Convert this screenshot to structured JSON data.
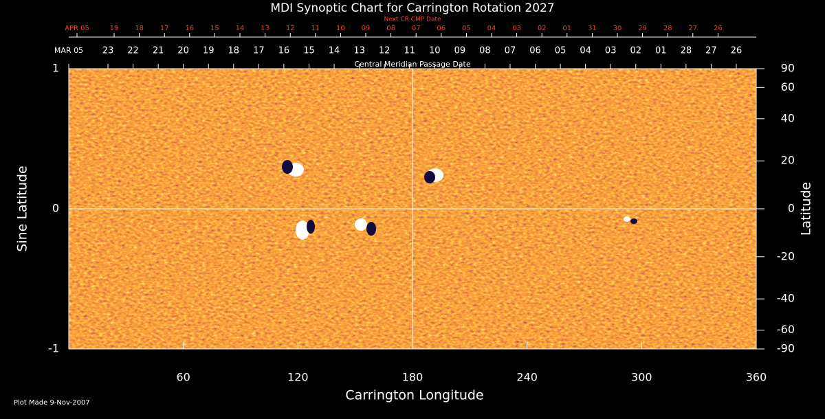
{
  "chart_data": {
    "type": "synoptic-map",
    "title": "MDI Synoptic Chart for Carrington Rotation 2027",
    "next_axis": {
      "title": "Next CR CMP Date",
      "color": "#ff3c1e",
      "labels": [
        "APR 05",
        "19",
        "18",
        "17",
        "16",
        "15",
        "14",
        "13",
        "12",
        "11",
        "10",
        "09",
        "08",
        "07",
        "06",
        "05",
        "04",
        "03",
        "02",
        "01",
        "31",
        "30",
        "29",
        "28",
        "27",
        "26"
      ]
    },
    "cmp_axis": {
      "title": "Central Meridian Passage Date",
      "labels": [
        "MAR 05",
        "23",
        "22",
        "21",
        "20",
        "19",
        "18",
        "17",
        "16",
        "15",
        "14",
        "13",
        "12",
        "11",
        "10",
        "09",
        "08",
        "07",
        "06",
        "05",
        "04",
        "03",
        "02",
        "01",
        "28",
        "27",
        "26"
      ]
    },
    "xlabel": "Carrington Longitude",
    "ylabel": "Sine Latitude",
    "y2label": "Latitude",
    "xlim": [
      0,
      360
    ],
    "xticks": [
      60,
      120,
      180,
      240,
      300,
      360
    ],
    "ylim": [
      -1,
      1
    ],
    "yticks": [
      -1,
      0,
      1
    ],
    "y2lim": [
      -90,
      90
    ],
    "y2scale": "sine",
    "y2ticks": [
      90,
      60,
      40,
      20,
      0,
      -20,
      -40,
      -60,
      -90
    ],
    "footnote": "Plot Made  9-Nov-2007"
  }
}
